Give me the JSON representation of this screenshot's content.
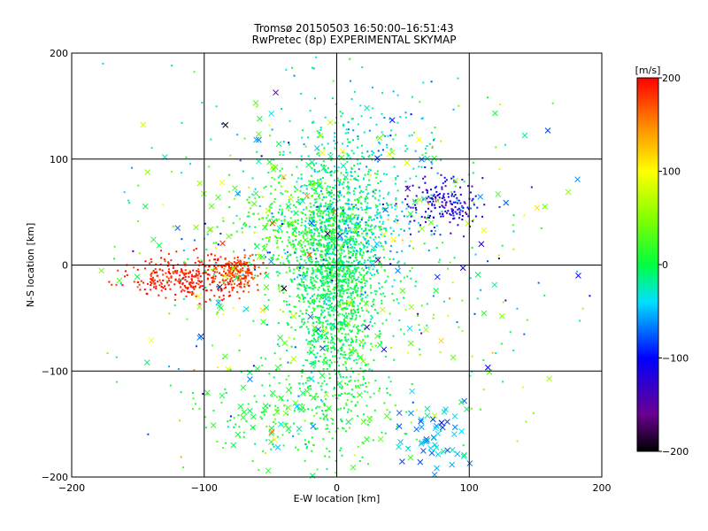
{
  "chart_data": {
    "type": "scatter",
    "title": "Tromsø 20150503 16:50:00–16:51:43",
    "subtitle": "RwPretec (8p) EXPERIMENTAL SKYMAP",
    "xlabel": "E-W location [km]",
    "ylabel": "N-S location [km]",
    "xlim": [
      -200,
      200
    ],
    "ylim": [
      -200,
      200
    ],
    "xticks": [
      -200,
      -100,
      0,
      100,
      200
    ],
    "yticks": [
      -200,
      -100,
      0,
      100,
      200
    ],
    "grid": true,
    "colorbar": {
      "label": "[m/s]",
      "range": [
        -200,
        200
      ],
      "ticks": [
        200,
        100,
        0,
        -100,
        -200
      ],
      "colormap": "rainbow (black-purple-blue-cyan-green-yellow-orange-red)"
    },
    "clusters": [
      {
        "x": -2,
        "y": -10,
        "sx": 16,
        "sy": 55,
        "n": 1600,
        "v": 0,
        "sv": 15,
        "marker": "dot"
      },
      {
        "x": 10,
        "y": 40,
        "sx": 25,
        "sy": 30,
        "n": 350,
        "v": -40,
        "sv": 15,
        "marker": "dot"
      },
      {
        "x": -30,
        "y": 30,
        "sx": 25,
        "sy": 30,
        "n": 300,
        "v": 20,
        "sv": 15,
        "marker": "dot"
      },
      {
        "x": -110,
        "y": -12,
        "sx": 22,
        "sy": 10,
        "n": 320,
        "v": 190,
        "sv": 10,
        "marker": "dot"
      },
      {
        "x": -75,
        "y": -8,
        "sx": 8,
        "sy": 8,
        "n": 160,
        "v": 175,
        "sv": 15,
        "marker": "dot"
      },
      {
        "x": 80,
        "y": 58,
        "sx": 15,
        "sy": 12,
        "n": 180,
        "v": -120,
        "sv": 20,
        "marker": "dot"
      },
      {
        "x": 25,
        "y": 120,
        "sx": 30,
        "sy": 30,
        "n": 120,
        "v": -30,
        "sv": 20,
        "marker": "dot"
      },
      {
        "x": -20,
        "y": -140,
        "sx": 35,
        "sy": 30,
        "n": 220,
        "v": 10,
        "sv": 15,
        "marker": "dot"
      },
      {
        "x": 0,
        "y": 0,
        "sx": 85,
        "sy": 90,
        "n": 450,
        "v": 0,
        "sv": 60,
        "marker": "dot"
      },
      {
        "x": 70,
        "y": -160,
        "sx": 20,
        "sy": 18,
        "n": 55,
        "v": -50,
        "sv": 20,
        "marker": "x"
      },
      {
        "x": -40,
        "y": -130,
        "sx": 30,
        "sy": 30,
        "n": 60,
        "v": 15,
        "sv": 15,
        "marker": "x"
      },
      {
        "x": -50,
        "y": 70,
        "sx": 40,
        "sy": 30,
        "n": 35,
        "v": 30,
        "sv": 40,
        "marker": "x"
      },
      {
        "x": 0,
        "y": 0,
        "sx": 90,
        "sy": 90,
        "n": 180,
        "v": 0,
        "sv": 80,
        "marker": "x"
      }
    ]
  }
}
